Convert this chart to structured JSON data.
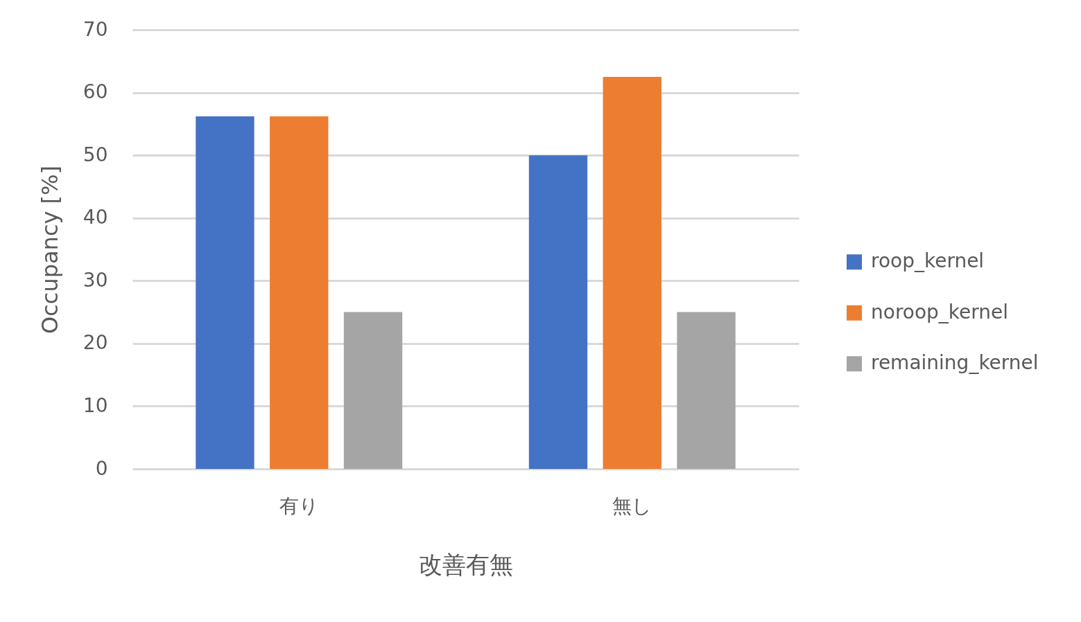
{
  "chart_data": {
    "type": "bar",
    "xlabel": "改善有無",
    "ylabel": "Occupancy [%]",
    "categories": [
      "有り",
      "無し"
    ],
    "series": [
      {
        "name": "roop_kernel",
        "color": "#4472c4",
        "values": [
          56.2,
          50
        ]
      },
      {
        "name": "noroop_kernel",
        "color": "#ed7d31",
        "values": [
          56.2,
          62.5
        ]
      },
      {
        "name": "remaining_kernel",
        "color": "#a5a5a5",
        "values": [
          25,
          25
        ]
      }
    ],
    "ylim": [
      0,
      70
    ],
    "yticks": [
      0,
      10,
      20,
      30,
      40,
      50,
      60,
      70
    ],
    "grid": "y",
    "legend": "right"
  }
}
